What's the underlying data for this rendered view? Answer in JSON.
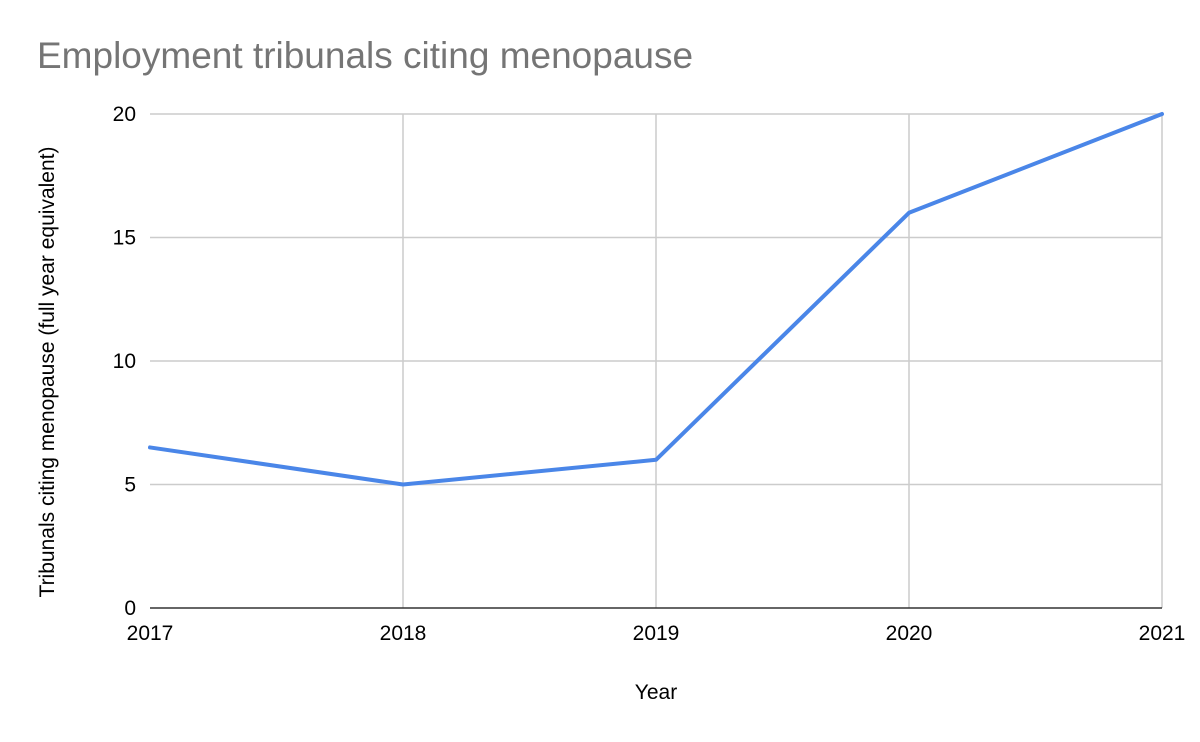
{
  "chart_data": {
    "type": "line",
    "title": "Employment tribunals citing menopause",
    "xlabel": "Year",
    "ylabel": "Tribunals citing menopause (full year equivalent)",
    "x": [
      "2017",
      "2018",
      "2019",
      "2020",
      "2021"
    ],
    "series": [
      {
        "values": [
          6.5,
          5,
          6,
          16,
          20
        ],
        "color": "#4a86e8"
      }
    ],
    "ylim": [
      0,
      20
    ],
    "yticks": [
      "0",
      "5",
      "10",
      "15",
      "20"
    ],
    "grid": true,
    "legend": "none"
  }
}
